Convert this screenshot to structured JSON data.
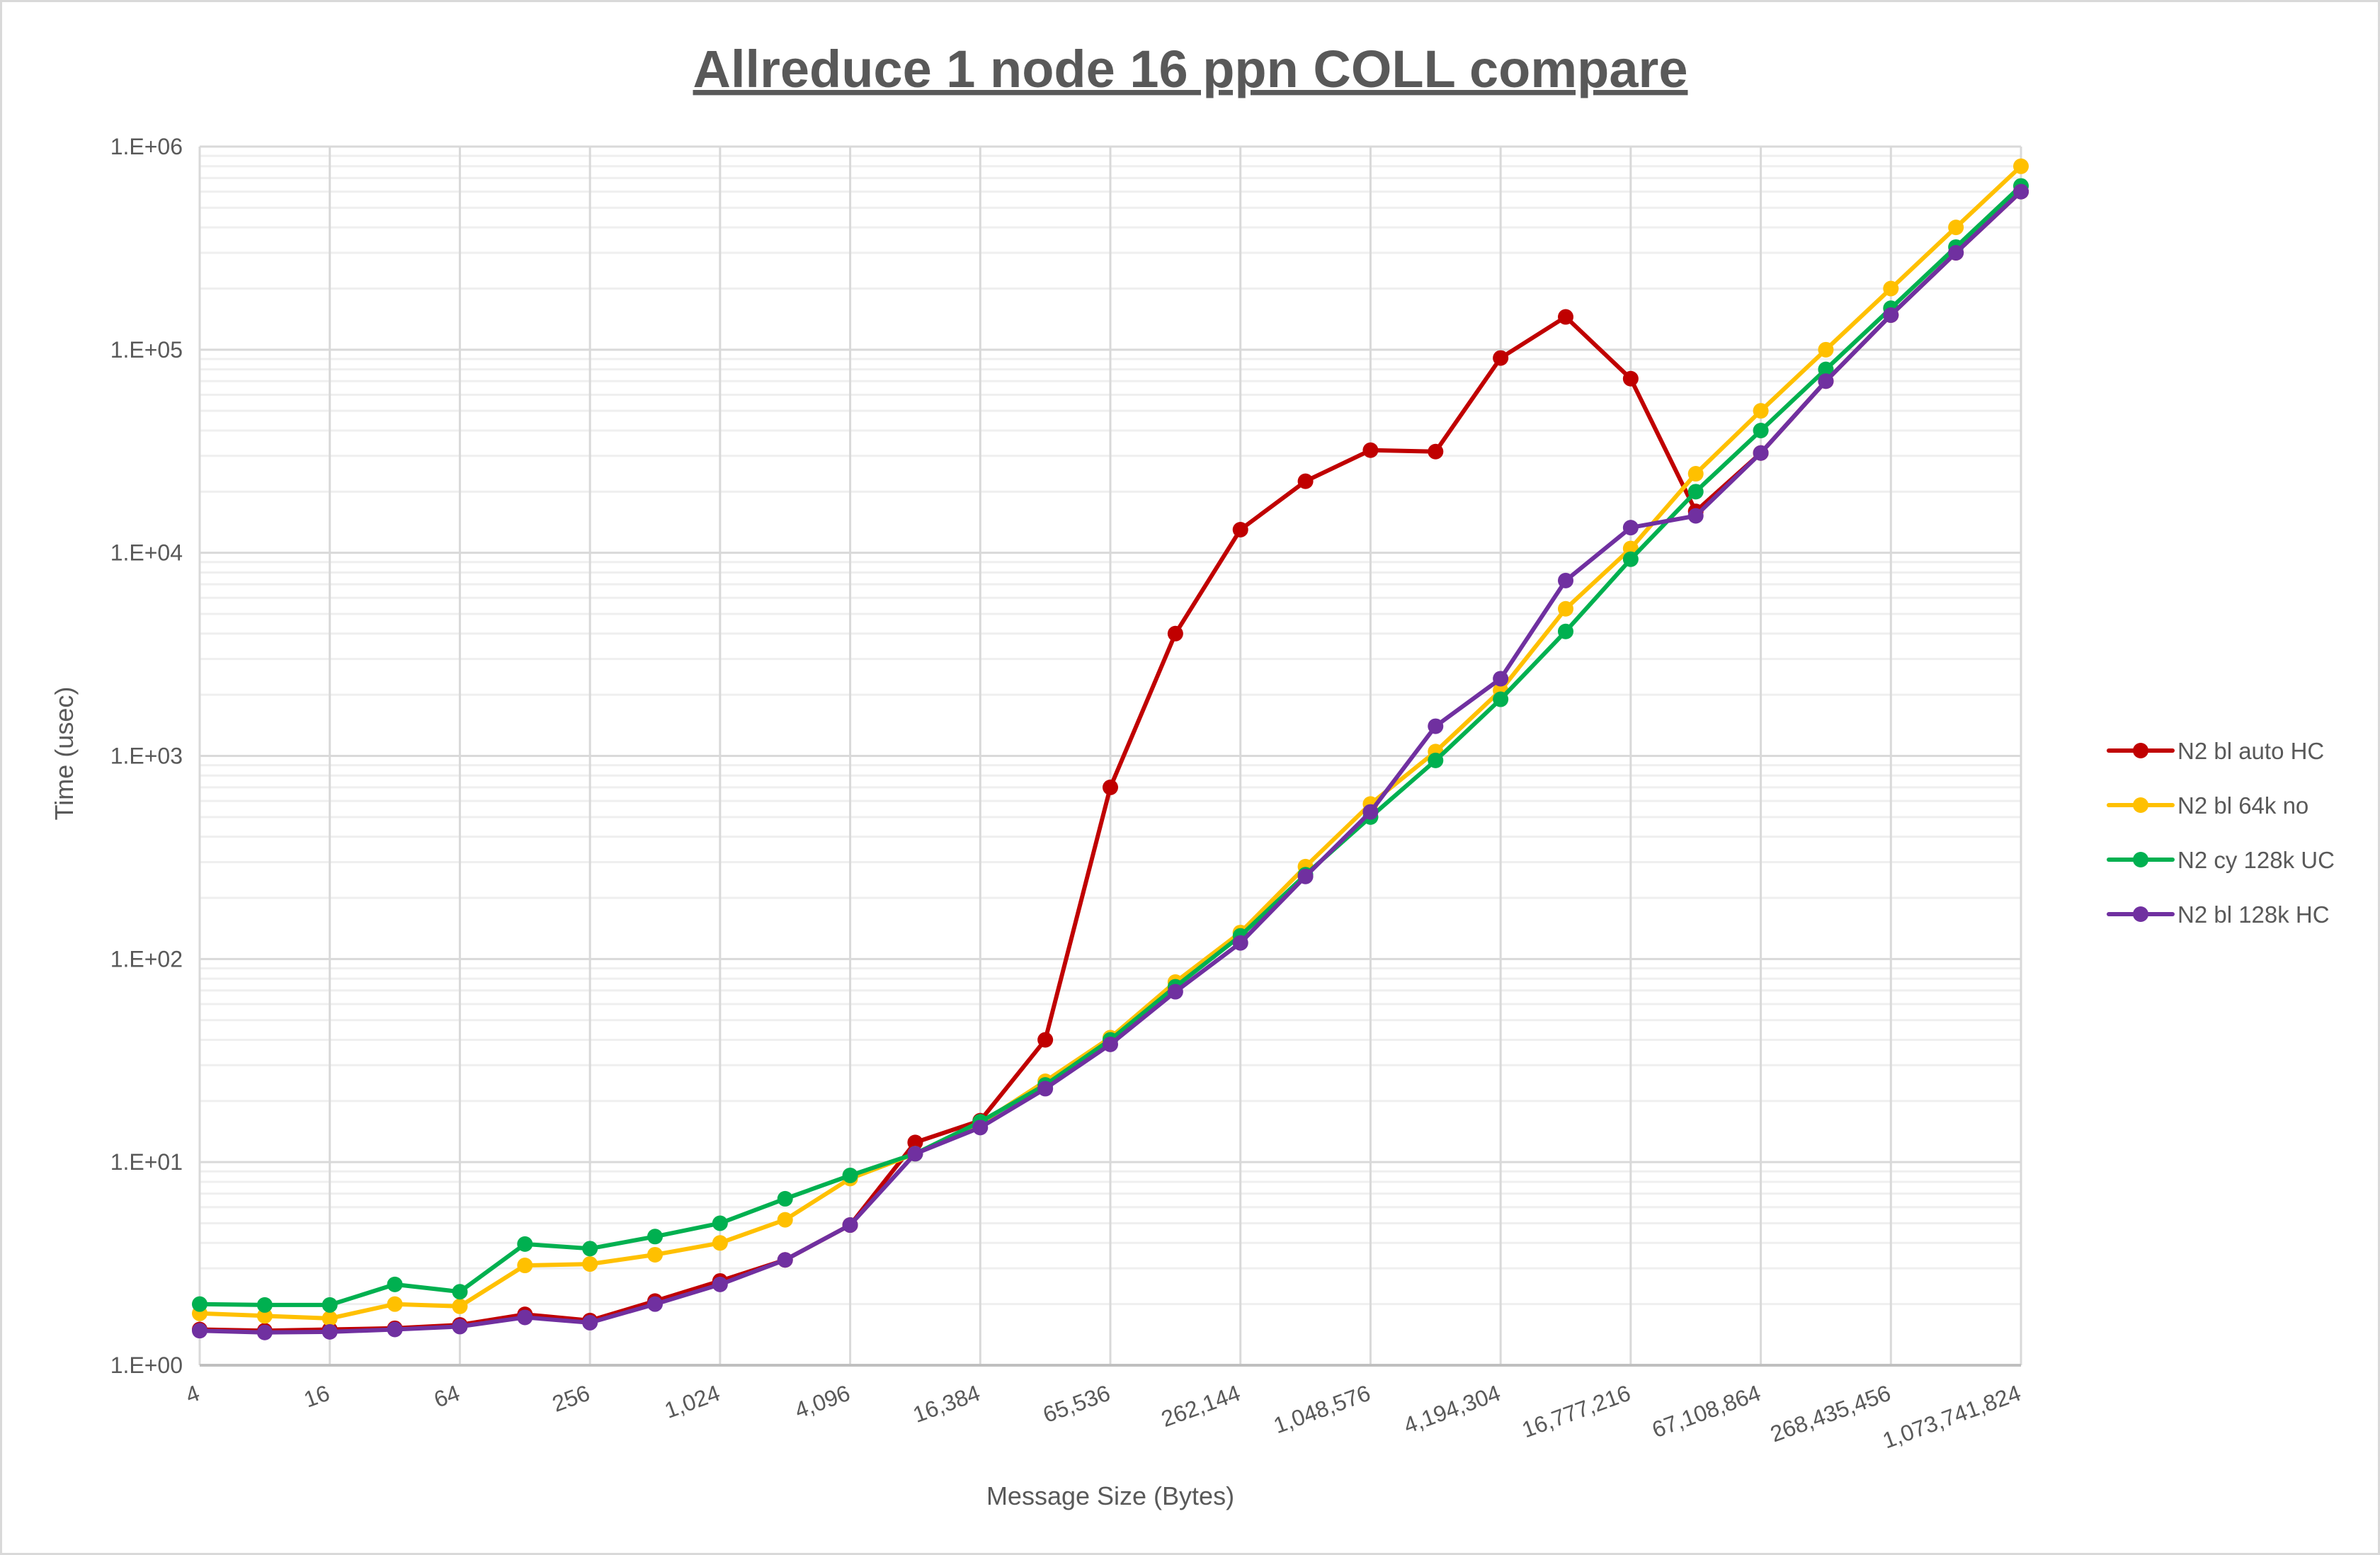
{
  "chart_data": {
    "type": "line",
    "title": "Allreduce 1 node 16 ppn COLL compare",
    "xlabel": "Message Size (Bytes)",
    "ylabel": "Time (usec)",
    "x_scale": "log2",
    "y_scale": "log10",
    "ylim": [
      1,
      1000000
    ],
    "grid": true,
    "legend_position": "right",
    "x": [
      4,
      8,
      16,
      32,
      64,
      128,
      256,
      512,
      1024,
      2048,
      4096,
      8192,
      16384,
      32768,
      65536,
      131072,
      262144,
      524288,
      1048576,
      2097152,
      4194304,
      8388608,
      16777216,
      33554432,
      67108864,
      134217728,
      268435456,
      536870912,
      1073741824
    ],
    "x_tick_labels": [
      "4",
      "16",
      "64",
      "256",
      "1,024",
      "4,096",
      "16,384",
      "65,536",
      "262,144",
      "1,048,576",
      "4,194,304",
      "16,777,216",
      "67,108,864",
      "268,435,456",
      "1,073,741,824"
    ],
    "y_tick_labels": [
      "1.E+00",
      "1.E+01",
      "1.E+02",
      "1.E+03",
      "1.E+04",
      "1.E+05",
      "1.E+06"
    ],
    "series": [
      {
        "name": "N2 bl auto HC",
        "color": "#C00000",
        "values": [
          1.5,
          1.48,
          1.5,
          1.52,
          1.58,
          1.78,
          1.66,
          2.07,
          2.6,
          3.3,
          4.9,
          12.5,
          16,
          40,
          700,
          4000,
          13000,
          22500,
          32000,
          31500,
          91000,
          145000,
          72000,
          16000,
          31000,
          70000,
          148000,
          300000,
          600000
        ]
      },
      {
        "name": "N2 bl 64k no",
        "color": "#FFC000",
        "values": [
          1.8,
          1.75,
          1.7,
          2.0,
          1.95,
          3.1,
          3.15,
          3.5,
          4.0,
          5.2,
          8.3,
          11,
          15.5,
          25,
          41,
          77,
          135,
          285,
          580,
          1050,
          2100,
          5300,
          10500,
          24500,
          50000,
          100000,
          200000,
          400000,
          800000
        ]
      },
      {
        "name": "N2 cy 128k UC",
        "color": "#00B050",
        "values": [
          2.0,
          1.98,
          1.98,
          2.5,
          2.3,
          3.95,
          3.75,
          4.3,
          5.0,
          6.6,
          8.6,
          11,
          15.8,
          24,
          40,
          73,
          130,
          260,
          500,
          950,
          1900,
          4100,
          9300,
          20000,
          40000,
          80000,
          160000,
          320000,
          640000
        ]
      },
      {
        "name": "N2 bl 128k HC",
        "color": "#7030A0",
        "values": [
          1.48,
          1.45,
          1.46,
          1.5,
          1.55,
          1.72,
          1.62,
          2.0,
          2.5,
          3.3,
          4.9,
          11,
          14.8,
          23,
          38,
          69,
          120,
          255,
          530,
          1400,
          2400,
          7300,
          13300,
          15200,
          31000,
          70000,
          148000,
          300000,
          600000
        ]
      }
    ]
  }
}
